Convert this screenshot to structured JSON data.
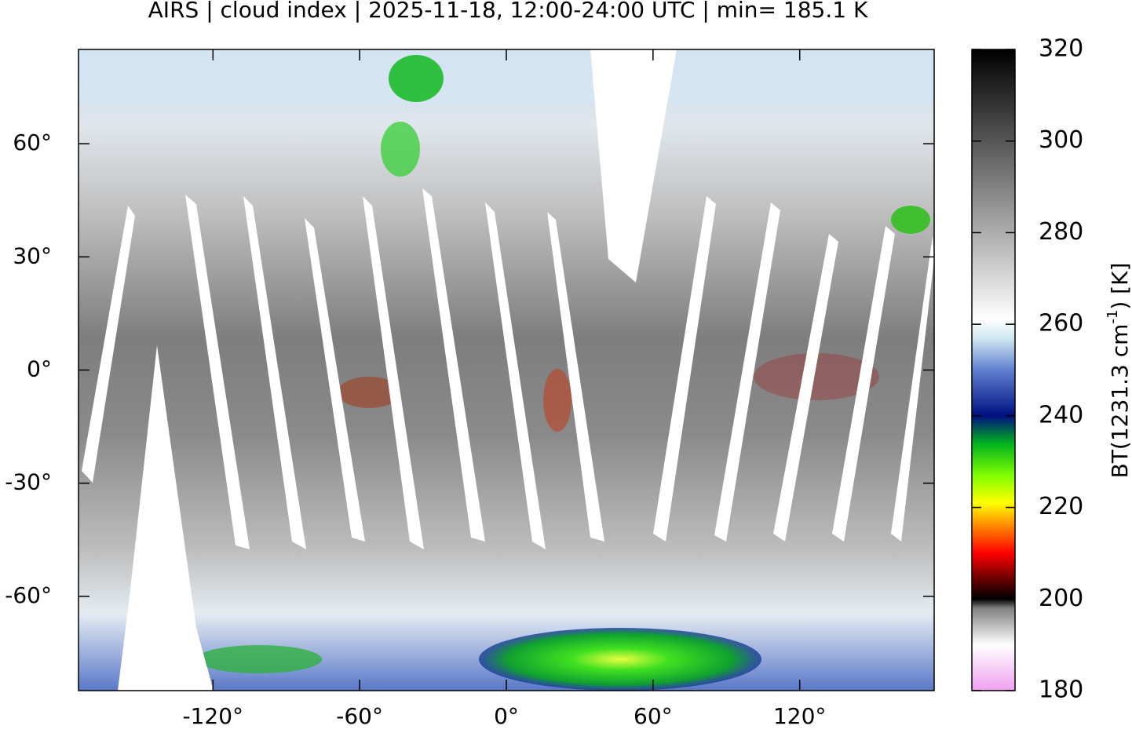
{
  "chart_data": {
    "type": "map",
    "title": "AIRS | cloud index | 2025-11-18, 12:00-24:00 UTC | min= 185.1 K",
    "xlim": [
      -175,
      175
    ],
    "ylim": [
      -85,
      85
    ],
    "xticks": [
      {
        "value": -120,
        "label": "-120°"
      },
      {
        "value": -60,
        "label": "-60°"
      },
      {
        "value": 0,
        "label": "0°"
      },
      {
        "value": 60,
        "label": "60°"
      },
      {
        "value": 120,
        "label": "120°"
      }
    ],
    "yticks": [
      {
        "value": 60,
        "label": "60°"
      },
      {
        "value": 30,
        "label": "30°"
      },
      {
        "value": 0,
        "label": "0°"
      },
      {
        "value": -30,
        "label": "-30°"
      },
      {
        "value": -60,
        "label": "-60°"
      }
    ],
    "colorbar": {
      "label": [
        "BT(1231.3 cm",
        "-1",
        ") [K]"
      ],
      "lim": [
        180,
        320
      ],
      "ticks": [
        180,
        200,
        220,
        240,
        260,
        280,
        300,
        320
      ],
      "colormap": [
        {
          "value": 180,
          "color": "#f0a0f0"
        },
        {
          "value": 190,
          "color": "#ffffff"
        },
        {
          "value": 198,
          "color": "#808080"
        },
        {
          "value": 200,
          "color": "#000000"
        },
        {
          "value": 204,
          "color": "#600000"
        },
        {
          "value": 210,
          "color": "#ff0000"
        },
        {
          "value": 217,
          "color": "#ffa000"
        },
        {
          "value": 221,
          "color": "#ffff00"
        },
        {
          "value": 227,
          "color": "#80ff00"
        },
        {
          "value": 234,
          "color": "#00b020"
        },
        {
          "value": 240,
          "color": "#001080"
        },
        {
          "value": 250,
          "color": "#6080d0"
        },
        {
          "value": 257,
          "color": "#d0e8f0"
        },
        {
          "value": 261,
          "color": "#ffffff"
        },
        {
          "value": 320,
          "color": "#000000"
        }
      ]
    }
  }
}
